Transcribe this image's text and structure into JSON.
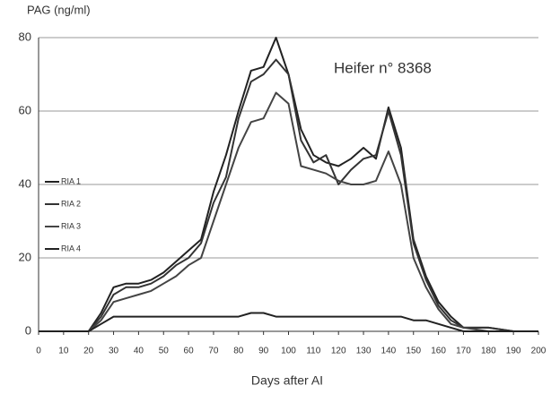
{
  "chart_data": {
    "type": "line",
    "y_label": "PAG (ng/ml)",
    "x_label": "Days after AI",
    "annotation": "Heifer n° 8368",
    "x": [
      0,
      10,
      20,
      25,
      30,
      35,
      40,
      45,
      50,
      55,
      60,
      65,
      70,
      75,
      80,
      85,
      90,
      95,
      100,
      105,
      110,
      115,
      120,
      125,
      130,
      135,
      140,
      145,
      150,
      155,
      160,
      165,
      170,
      180,
      190,
      200
    ],
    "series": [
      {
        "name": "RIA 1",
        "color": "#222222",
        "values": [
          0,
          0,
          0,
          5,
          12,
          13,
          13,
          14,
          16,
          19,
          22,
          25,
          38,
          48,
          60,
          71,
          72,
          80,
          70,
          55,
          48,
          46,
          45,
          47,
          50,
          47,
          61,
          50,
          25,
          15,
          8,
          4,
          1,
          1,
          0,
          0
        ]
      },
      {
        "name": "RIA 2",
        "color": "#333333",
        "values": [
          0,
          0,
          0,
          4,
          10,
          12,
          12,
          13,
          15,
          18,
          20,
          24,
          35,
          42,
          58,
          68,
          70,
          74,
          70,
          52,
          46,
          48,
          40,
          44,
          47,
          48,
          60,
          48,
          24,
          14,
          7,
          3,
          1,
          1,
          0,
          0
        ]
      },
      {
        "name": "RIA 3",
        "color": "#444444",
        "values": [
          0,
          0,
          0,
          3,
          8,
          9,
          10,
          11,
          13,
          15,
          18,
          20,
          30,
          40,
          50,
          57,
          58,
          65,
          62,
          45,
          44,
          43,
          41,
          40,
          40,
          41,
          49,
          40,
          20,
          12,
          6,
          2,
          1,
          0,
          0,
          0
        ]
      },
      {
        "name": "RIA 4",
        "color": "#222222",
        "values": [
          0,
          0,
          0,
          2,
          4,
          4,
          4,
          4,
          4,
          4,
          4,
          4,
          4,
          4,
          4,
          5,
          5,
          4,
          4,
          4,
          4,
          4,
          4,
          4,
          4,
          4,
          4,
          4,
          3,
          3,
          2,
          1,
          0,
          0,
          0,
          0
        ]
      }
    ],
    "xlim": [
      0,
      200
    ],
    "xticks": [
      0,
      10,
      20,
      30,
      40,
      50,
      60,
      70,
      80,
      90,
      100,
      110,
      120,
      130,
      140,
      150,
      160,
      170,
      180,
      190,
      200
    ],
    "ylim": [
      0,
      80
    ],
    "yticks": [
      0,
      20,
      40,
      60,
      80
    ],
    "grid": true
  }
}
